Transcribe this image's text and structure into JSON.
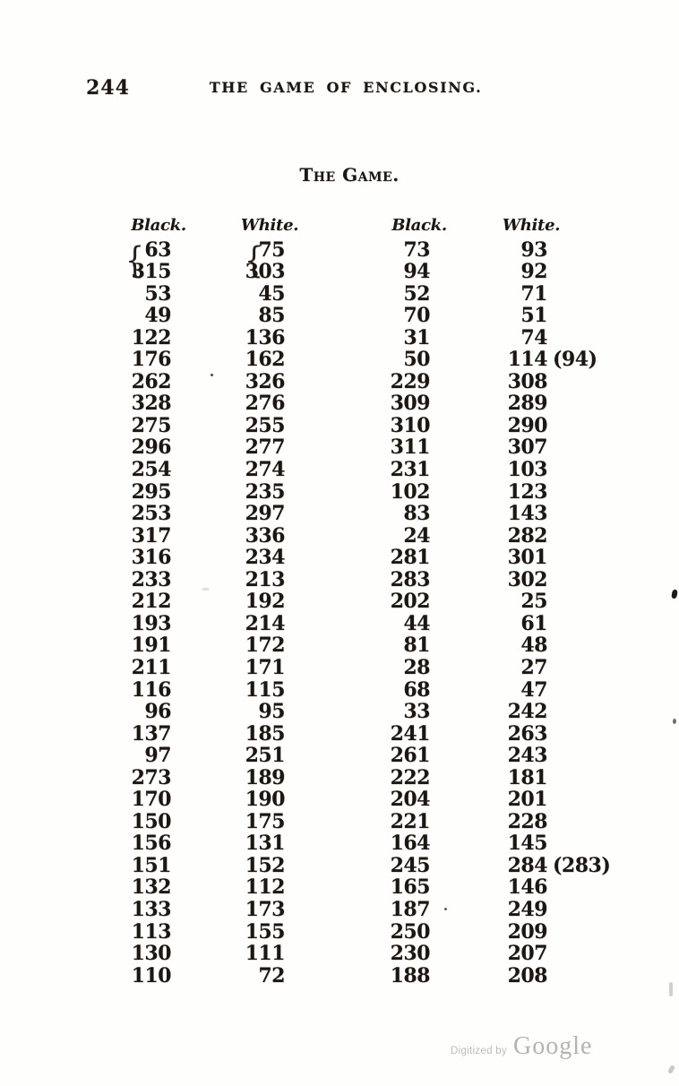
{
  "page": {
    "number": "244",
    "running_title": "THE GAME OF ENCLOSING.",
    "section_title": "The Game."
  },
  "table": {
    "headers": [
      "Black.",
      "White.",
      "Black.",
      "White."
    ],
    "brace": "{",
    "rows": [
      [
        "63",
        "75",
        "73",
        "93"
      ],
      [
        "315",
        "303",
        "94",
        "92"
      ],
      [
        "53",
        "45",
        "52",
        "71"
      ],
      [
        "49",
        "85",
        "70",
        "51"
      ],
      [
        "122",
        "136",
        "31",
        "74"
      ],
      [
        "176",
        "162",
        "50",
        "114 (94)"
      ],
      [
        "262",
        "326",
        "229",
        "308"
      ],
      [
        "328",
        "276",
        "309",
        "289"
      ],
      [
        "275",
        "255",
        "310",
        "290"
      ],
      [
        "296",
        "277",
        "311",
        "307"
      ],
      [
        "254",
        "274",
        "231",
        "103"
      ],
      [
        "295",
        "235",
        "102",
        "123"
      ],
      [
        "253",
        "297",
        "83",
        "143"
      ],
      [
        "317",
        "336",
        "24",
        "282"
      ],
      [
        "316",
        "234",
        "281",
        "301"
      ],
      [
        "233",
        "213",
        "283",
        "302"
      ],
      [
        "212",
        "192",
        "202",
        "25"
      ],
      [
        "193",
        "214",
        "44",
        "61"
      ],
      [
        "191",
        "172",
        "81",
        "48"
      ],
      [
        "211",
        "171",
        "28",
        "27"
      ],
      [
        "116",
        "115",
        "68",
        "47"
      ],
      [
        "96",
        "95",
        "33",
        "242"
      ],
      [
        "137",
        "185",
        "241",
        "263"
      ],
      [
        "97",
        "251",
        "261",
        "243"
      ],
      [
        "273",
        "189",
        "222",
        "181"
      ],
      [
        "170",
        "190",
        "204",
        "201"
      ],
      [
        "150",
        "175",
        "221",
        "228"
      ],
      [
        "156",
        "131",
        "164",
        "145"
      ],
      [
        "151",
        "152",
        "245",
        "284 (283)"
      ],
      [
        "132",
        "112",
        "165",
        "146"
      ],
      [
        "133",
        "173",
        "187",
        "249"
      ],
      [
        "113",
        "155",
        "250",
        "209"
      ],
      [
        "130",
        "111",
        "230",
        "207"
      ],
      [
        "110",
        "72",
        "188",
        "208"
      ]
    ]
  },
  "watermark": {
    "prefix": "Digitized by",
    "brand": "Google"
  }
}
